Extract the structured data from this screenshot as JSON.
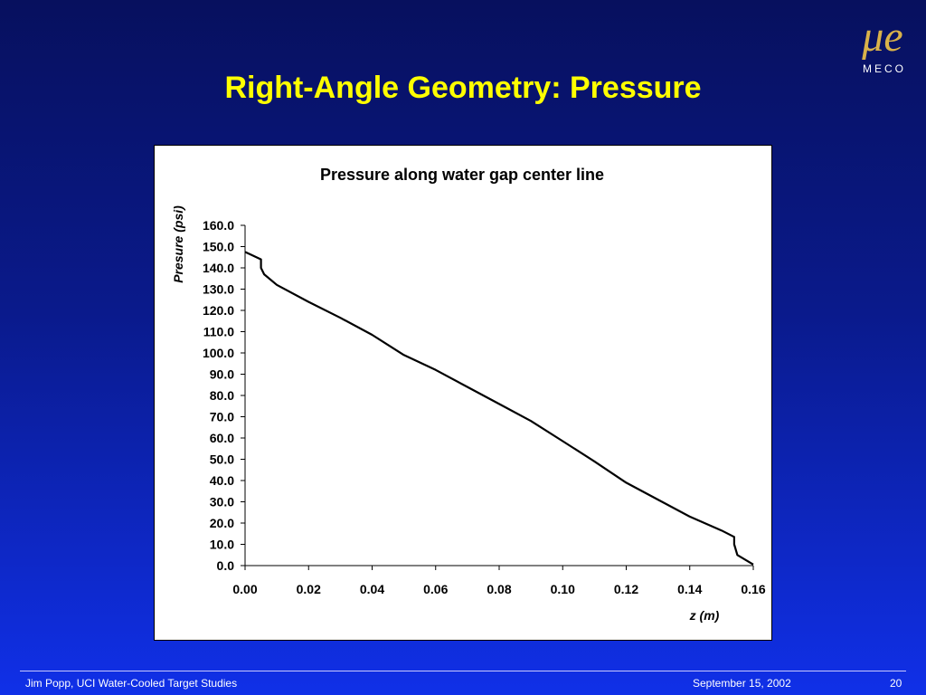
{
  "slide": {
    "title": "Right-Angle Geometry: Pressure",
    "logo_text": "MECO",
    "logo_mark": "μe",
    "footer_left": "Jim Popp, UCI  Water-Cooled Target Studies",
    "footer_date": "September 15, 2002",
    "footer_page": "20",
    "colors": {
      "title": "#ffff00",
      "background_top": "#07105e",
      "background_bottom": "#1030e8",
      "logo": "#d9b24a"
    }
  },
  "chart_data": {
    "type": "line",
    "title": "Pressure along water gap center line",
    "xlabel": "z (m)",
    "ylabel": "Presure  (psi)",
    "xlim": [
      0,
      0.16
    ],
    "ylim": [
      0,
      160
    ],
    "x_ticks": [
      "0.00",
      "0.02",
      "0.04",
      "0.06",
      "0.08",
      "0.10",
      "0.12",
      "0.14",
      "0.16"
    ],
    "y_ticks": [
      "0.0",
      "10.0",
      "20.0",
      "30.0",
      "40.0",
      "50.0",
      "60.0",
      "70.0",
      "80.0",
      "90.0",
      "100.0",
      "110.0",
      "120.0",
      "130.0",
      "140.0",
      "150.0",
      "160.0"
    ],
    "grid": false,
    "legend": "none",
    "series": [
      {
        "x": [
          0.0,
          0.005,
          0.005,
          0.006,
          0.01,
          0.02,
          0.03,
          0.04,
          0.05,
          0.06,
          0.07,
          0.08,
          0.09,
          0.1,
          0.11,
          0.12,
          0.13,
          0.14,
          0.15,
          0.154,
          0.154,
          0.155,
          0.16
        ],
        "y": [
          147.5,
          144.0,
          140.0,
          137.0,
          132.0,
          124.0,
          116.5,
          108.5,
          99.0,
          92.0,
          84.0,
          76.0,
          68.0,
          58.5,
          49.0,
          39.0,
          31.0,
          23.0,
          16.5,
          13.5,
          10.0,
          5.0,
          0.5
        ]
      }
    ]
  }
}
